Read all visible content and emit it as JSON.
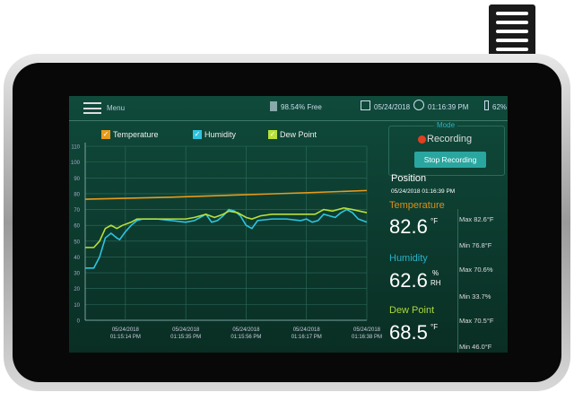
{
  "topbar": {
    "menu_label": "Menu",
    "storage": "98.54% Free",
    "date": "05/24/2018",
    "time": "01:16:39 PM",
    "battery": "62%"
  },
  "legend": [
    {
      "label": "Temperature",
      "color": "#e89a1c"
    },
    {
      "label": "Humidity",
      "color": "#2ec4e0"
    },
    {
      "label": "Dew Point",
      "color": "#b8e03a"
    }
  ],
  "mode": {
    "title": "Mode",
    "status": "Recording",
    "button": "Stop Recording"
  },
  "position": {
    "title": "Position",
    "timestamp": "05/24/2018 01:16:39 PM"
  },
  "readings": [
    {
      "label": "Temperature",
      "value": "82.6",
      "unit": "°F",
      "max": "Max 82.6°F",
      "min": "Min 76.8°F",
      "color": "#d8901a"
    },
    {
      "label": "Humidity",
      "value": "62.6",
      "unit": "%",
      "unit2": "RH",
      "max": "Max 70.6%",
      "min": "Min 33.7%",
      "color": "#2ab0c8"
    },
    {
      "label": "Dew Point",
      "value": "68.5",
      "unit": "°F",
      "max": "Max 70.5°F",
      "min": "Min 46.0°F",
      "color": "#a8d83a"
    }
  ],
  "chart_data": {
    "type": "line",
    "ylim": [
      0,
      110
    ],
    "xlim": [
      "01:15:00 PM",
      "01:16:38 PM"
    ],
    "grid": true,
    "yticks": [
      "0",
      "10",
      "20",
      "30",
      "40",
      "50",
      "60",
      "70",
      "80",
      "90",
      "100",
      "110"
    ],
    "xticks": [
      {
        "date": "05/24/2018",
        "time": "01:15:14 PM"
      },
      {
        "date": "05/24/2018",
        "time": "01:15:35 PM"
      },
      {
        "date": "05/24/2018",
        "time": "01:15:56 PM"
      },
      {
        "date": "05/24/2018",
        "time": "01:16:17 PM"
      },
      {
        "date": "05/24/2018",
        "time": "01:16:38 PM"
      }
    ],
    "series": [
      {
        "name": "Temperature",
        "color": "#e89a1c",
        "points": [
          [
            "01:15:00 PM",
            76.5
          ],
          [
            "01:15:30 PM",
            77.8
          ],
          [
            "01:16:00 PM",
            79.6
          ],
          [
            "01:16:20 PM",
            80.8
          ],
          [
            "01:16:38 PM",
            82
          ]
        ]
      },
      {
        "name": "Humidity",
        "color": "#2ec4e0",
        "points": [
          [
            "01:15:00 PM",
            33
          ],
          [
            "01:15:03 PM",
            33
          ],
          [
            "01:15:05 PM",
            40
          ],
          [
            "01:15:07 PM",
            52
          ],
          [
            "01:15:09 PM",
            55
          ],
          [
            "01:15:11 PM",
            52
          ],
          [
            "01:15:12 PM",
            51
          ],
          [
            "01:15:14 PM",
            56
          ],
          [
            "01:15:16 PM",
            60
          ],
          [
            "01:15:18 PM",
            63
          ],
          [
            "01:15:20 PM",
            64
          ],
          [
            "01:15:25 PM",
            64
          ],
          [
            "01:15:30 PM",
            63
          ],
          [
            "01:15:35 PM",
            62
          ],
          [
            "01:15:38 PM",
            63
          ],
          [
            "01:15:40 PM",
            65
          ],
          [
            "01:15:42 PM",
            67
          ],
          [
            "01:15:44 PM",
            62
          ],
          [
            "01:15:46 PM",
            63
          ],
          [
            "01:15:48 PM",
            66
          ],
          [
            "01:15:50 PM",
            70
          ],
          [
            "01:15:52 PM",
            69
          ],
          [
            "01:15:54 PM",
            66
          ],
          [
            "01:15:56 PM",
            60
          ],
          [
            "01:15:58 PM",
            58
          ],
          [
            "01:16:00 PM",
            63
          ],
          [
            "01:16:05 PM",
            64
          ],
          [
            "01:16:10 PM",
            64
          ],
          [
            "01:16:15 PM",
            63
          ],
          [
            "01:16:17 PM",
            64
          ],
          [
            "01:16:19 PM",
            62
          ],
          [
            "01:16:21 PM",
            63
          ],
          [
            "01:16:23 PM",
            67
          ],
          [
            "01:16:25 PM",
            66
          ],
          [
            "01:16:27 PM",
            65
          ],
          [
            "01:16:29 PM",
            68
          ],
          [
            "01:16:31 PM",
            70
          ],
          [
            "01:16:33 PM",
            68
          ],
          [
            "01:16:35 PM",
            64
          ],
          [
            "01:16:38 PM",
            62
          ]
        ]
      },
      {
        "name": "Dew Point",
        "color": "#b8e03a",
        "points": [
          [
            "01:15:00 PM",
            46
          ],
          [
            "01:15:03 PM",
            46
          ],
          [
            "01:15:05 PM",
            50
          ],
          [
            "01:15:07 PM",
            58
          ],
          [
            "01:15:09 PM",
            60
          ],
          [
            "01:15:11 PM",
            58
          ],
          [
            "01:15:13 PM",
            60
          ],
          [
            "01:15:16 PM",
            62
          ],
          [
            "01:15:18 PM",
            64
          ],
          [
            "01:15:25 PM",
            64
          ],
          [
            "01:15:30 PM",
            64
          ],
          [
            "01:15:35 PM",
            64
          ],
          [
            "01:15:38 PM",
            65
          ],
          [
            "01:15:42 PM",
            67
          ],
          [
            "01:15:45 PM",
            65
          ],
          [
            "01:15:48 PM",
            67
          ],
          [
            "01:15:50 PM",
            69
          ],
          [
            "01:15:53 PM",
            68
          ],
          [
            "01:15:56 PM",
            65
          ],
          [
            "01:15:58 PM",
            64
          ],
          [
            "01:16:01 PM",
            66
          ],
          [
            "01:16:05 PM",
            67
          ],
          [
            "01:16:15 PM",
            67
          ],
          [
            "01:16:20 PM",
            67
          ],
          [
            "01:16:23 PM",
            70
          ],
          [
            "01:16:26 PM",
            69
          ],
          [
            "01:16:30 PM",
            71
          ],
          [
            "01:16:33 PM",
            70
          ],
          [
            "01:16:38 PM",
            68
          ]
        ]
      }
    ]
  }
}
